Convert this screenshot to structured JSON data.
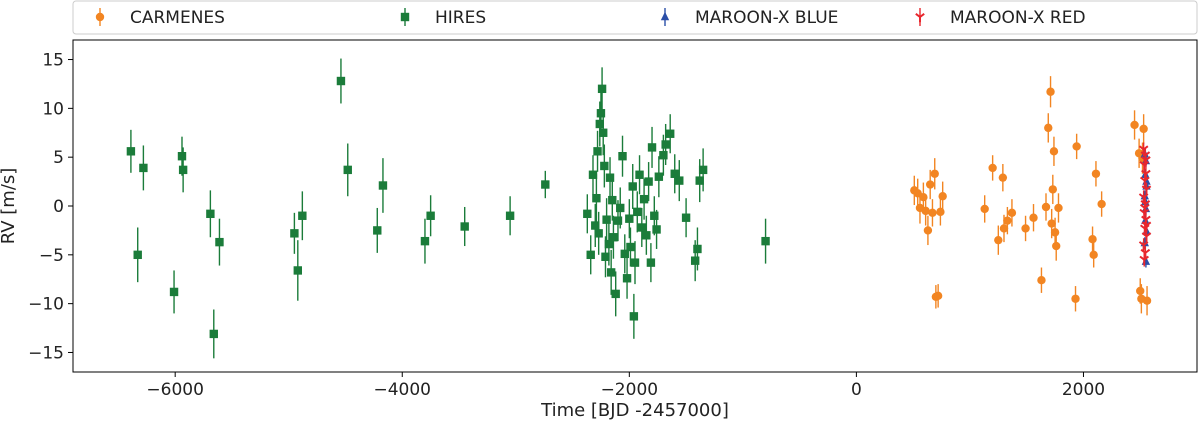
{
  "chart_data": {
    "type": "scatter",
    "title": "",
    "xlabel": "Time [BJD -2457000]",
    "ylabel": "RV [m/s]",
    "xlim": [
      -6900,
      3000
    ],
    "ylim": [
      -17,
      17
    ],
    "xticks": [
      -6000,
      -4000,
      -2000,
      0,
      2000
    ],
    "yticks": [
      -15,
      -10,
      -5,
      0,
      5,
      10,
      15
    ],
    "grid": false,
    "legend_position": "top",
    "series": [
      {
        "name": "CARMENES",
        "color": "#f28522",
        "marker": "circle",
        "points": [
          [
            510,
            1.6,
            1.5
          ],
          [
            540,
            1.3,
            1.5
          ],
          [
            560,
            -0.2,
            1.6
          ],
          [
            590,
            0.9,
            1.5
          ],
          [
            610,
            -0.5,
            1.5
          ],
          [
            630,
            -2.5,
            1.5
          ],
          [
            650,
            2.2,
            1.5
          ],
          [
            670,
            -0.7,
            1.4
          ],
          [
            690,
            3.3,
            1.6
          ],
          [
            700,
            -9.3,
            1.2
          ],
          [
            720,
            -9.2,
            1.2
          ],
          [
            740,
            -0.6,
            1.4
          ],
          [
            760,
            1.0,
            1.5
          ],
          [
            1130,
            -0.3,
            1.4
          ],
          [
            1200,
            3.9,
            1.3
          ],
          [
            1250,
            -3.5,
            1.5
          ],
          [
            1290,
            2.9,
            1.4
          ],
          [
            1300,
            -2.3,
            1.4
          ],
          [
            1330,
            -1.5,
            1.4
          ],
          [
            1370,
            -0.7,
            1.4
          ],
          [
            1490,
            -2.3,
            1.3
          ],
          [
            1560,
            -1.2,
            1.4
          ],
          [
            1630,
            -7.6,
            1.3
          ],
          [
            1670,
            -0.1,
            1.4
          ],
          [
            1690,
            8.0,
            1.5
          ],
          [
            1710,
            11.7,
            1.6
          ],
          [
            1730,
            1.7,
            1.5
          ],
          [
            1720,
            -1.8,
            1.5
          ],
          [
            1740,
            5.6,
            1.5
          ],
          [
            1750,
            -2.7,
            1.5
          ],
          [
            1760,
            -4.1,
            1.5
          ],
          [
            1780,
            -0.2,
            1.5
          ],
          [
            1930,
            -9.5,
            1.3
          ],
          [
            1940,
            6.1,
            1.3
          ],
          [
            2080,
            -3.4,
            1.3
          ],
          [
            2090,
            -5.0,
            1.3
          ],
          [
            2110,
            3.3,
            1.3
          ],
          [
            2160,
            0.2,
            1.3
          ],
          [
            2450,
            8.3,
            1.5
          ],
          [
            2490,
            5.4,
            1.5
          ],
          [
            2520,
            4.9,
            1.6
          ],
          [
            2530,
            7.9,
            1.5
          ],
          [
            2500,
            -8.7,
            1.3
          ],
          [
            2510,
            -9.5,
            1.5
          ],
          [
            2560,
            -9.7,
            1.5
          ]
        ]
      },
      {
        "name": "HIRES",
        "color": "#1b7c3a",
        "marker": "square",
        "points": [
          [
            -6390,
            5.6,
            2.2
          ],
          [
            -6330,
            -5.0,
            2.8
          ],
          [
            -6280,
            3.9,
            2.3
          ],
          [
            -6010,
            -8.8,
            2.2
          ],
          [
            -5940,
            5.1,
            2.0
          ],
          [
            -5930,
            3.7,
            2.3
          ],
          [
            -5690,
            -0.8,
            2.4
          ],
          [
            -5660,
            -13.1,
            2.5
          ],
          [
            -5610,
            -3.7,
            2.4
          ],
          [
            -4950,
            -2.8,
            2.1
          ],
          [
            -4920,
            -6.6,
            3.1
          ],
          [
            -4880,
            -1.0,
            2.5
          ],
          [
            -4540,
            12.8,
            2.3
          ],
          [
            -4480,
            3.7,
            2.7
          ],
          [
            -4220,
            -2.5,
            2.3
          ],
          [
            -4170,
            2.1,
            2.8
          ],
          [
            -3800,
            -3.6,
            2.3
          ],
          [
            -3750,
            -1.0,
            2.1
          ],
          [
            -3450,
            -2.1,
            2.0
          ],
          [
            -3050,
            -1.0,
            2.0
          ],
          [
            -2740,
            2.2,
            1.4
          ],
          [
            -2370,
            -0.8,
            2.0
          ],
          [
            -2340,
            -5.0,
            2.0
          ],
          [
            -2320,
            3.2,
            2.0
          ],
          [
            -2300,
            -2.0,
            2.2
          ],
          [
            -2290,
            0.8,
            2.5
          ],
          [
            -2280,
            5.6,
            2.1
          ],
          [
            -2270,
            -2.8,
            2.2
          ],
          [
            -2260,
            8.4,
            2.3
          ],
          [
            -2250,
            9.5,
            2.3
          ],
          [
            -2240,
            12.0,
            2.2
          ],
          [
            -2230,
            7.5,
            2.3
          ],
          [
            -2220,
            4.1,
            2.2
          ],
          [
            -2210,
            -5.2,
            2.1
          ],
          [
            -2200,
            -1.4,
            2.2
          ],
          [
            -2180,
            -3.9,
            2.2
          ],
          [
            -2170,
            2.9,
            2.1
          ],
          [
            -2160,
            -6.8,
            2.3
          ],
          [
            -2150,
            0.6,
            2.1
          ],
          [
            -2140,
            -3.2,
            2.2
          ],
          [
            -2120,
            -9.0,
            2.3
          ],
          [
            -2100,
            -1.5,
            2.1
          ],
          [
            -2080,
            -0.2,
            2.1
          ],
          [
            -2060,
            5.1,
            2.1
          ],
          [
            -2040,
            -4.9,
            2.0
          ],
          [
            -2020,
            -7.4,
            2.1
          ],
          [
            -2000,
            -1.3,
            2.0
          ],
          [
            -1990,
            -4.2,
            2.0
          ],
          [
            -1970,
            2.0,
            2.3
          ],
          [
            -1960,
            -11.3,
            2.3
          ],
          [
            -1950,
            -5.8,
            2.2
          ],
          [
            -1930,
            -0.6,
            2.1
          ],
          [
            -1910,
            3.2,
            2.0
          ],
          [
            -1890,
            -2.2,
            2.0
          ],
          [
            -1870,
            0.7,
            2.1
          ],
          [
            -1850,
            -3.0,
            2.0
          ],
          [
            -1830,
            2.5,
            2.0
          ],
          [
            -1810,
            -5.8,
            2.0
          ],
          [
            -1800,
            6.0,
            2.1
          ],
          [
            -1780,
            -1.0,
            2.0
          ],
          [
            -1760,
            -2.4,
            2.0
          ],
          [
            -1740,
            3.0,
            2.1
          ],
          [
            -1700,
            5.2,
            2.1
          ],
          [
            -1680,
            6.3,
            2.1
          ],
          [
            -1640,
            7.4,
            2.0
          ],
          [
            -1600,
            3.3,
            2.0
          ],
          [
            -1560,
            2.6,
            2.1
          ],
          [
            -1500,
            -1.2,
            2.0
          ],
          [
            -1420,
            -5.6,
            2.1
          ],
          [
            -1400,
            -4.4,
            2.2
          ],
          [
            -1380,
            2.6,
            2.2
          ],
          [
            -1350,
            3.7,
            2.2
          ],
          [
            -800,
            -3.6,
            2.3
          ]
        ]
      },
      {
        "name": "MAROON-X BLUE",
        "color": "#2b4fa8",
        "marker": "triangle-up",
        "points": [
          [
            2540,
            5.3,
            0.6
          ],
          [
            2550,
            4.6,
            0.6
          ],
          [
            2545,
            3.2,
            0.6
          ],
          [
            2555,
            2.0,
            0.6
          ],
          [
            2540,
            1.0,
            0.6
          ],
          [
            2550,
            -0.3,
            0.6
          ],
          [
            2545,
            -1.5,
            0.6
          ],
          [
            2555,
            -2.6,
            0.6
          ],
          [
            2540,
            -3.8,
            0.6
          ],
          [
            2550,
            -5.7,
            0.6
          ],
          [
            2545,
            0.4,
            0.6
          ],
          [
            2555,
            2.5,
            0.6
          ]
        ]
      },
      {
        "name": "MAROON-X RED",
        "color": "#e8272d",
        "marker": "tri-down",
        "points": [
          [
            2530,
            5.8,
            0.7
          ],
          [
            2545,
            5.2,
            0.7
          ],
          [
            2535,
            4.2,
            0.7
          ],
          [
            2550,
            3.3,
            0.7
          ],
          [
            2540,
            2.6,
            0.7
          ],
          [
            2555,
            1.7,
            0.7
          ],
          [
            2530,
            0.9,
            0.7
          ],
          [
            2545,
            0.2,
            0.7
          ],
          [
            2535,
            -0.7,
            0.7
          ],
          [
            2550,
            -1.4,
            0.7
          ],
          [
            2540,
            -2.3,
            0.7
          ],
          [
            2555,
            -3.1,
            0.7
          ],
          [
            2530,
            -4.0,
            0.7
          ],
          [
            2545,
            -4.8,
            0.7
          ],
          [
            2535,
            -5.5,
            0.7
          ],
          [
            2550,
            4.7,
            0.7
          ],
          [
            2540,
            -0.2,
            0.7
          ],
          [
            2555,
            -2.0,
            0.7
          ]
        ]
      }
    ]
  }
}
